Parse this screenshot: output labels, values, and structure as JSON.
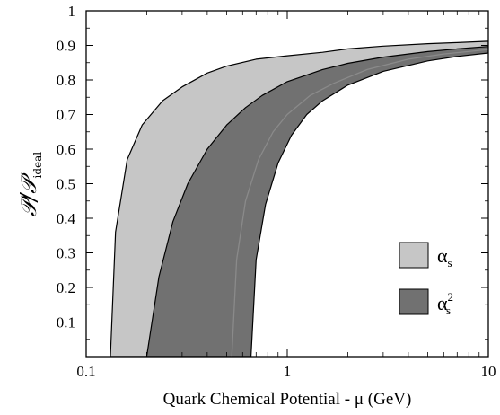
{
  "chart_data": {
    "type": "area",
    "title": "",
    "xlabel": "Quark Chemical Potential - μ (GeV)",
    "ylabel": {
      "main": "𝒫/𝒫",
      "sub": "ideal"
    },
    "xscale": "log",
    "xlim": [
      0.1,
      10
    ],
    "ylim": [
      0,
      1
    ],
    "x_ticks": [
      {
        "value": 0.1,
        "label": "0.1"
      },
      {
        "value": 1,
        "label": "1"
      },
      {
        "value": 10,
        "label": "10"
      }
    ],
    "y_ticks": [
      {
        "value": 0.1,
        "label": "0.1"
      },
      {
        "value": 0.2,
        "label": "0.2"
      },
      {
        "value": 0.3,
        "label": "0.3"
      },
      {
        "value": 0.4,
        "label": "0.4"
      },
      {
        "value": 0.5,
        "label": "0.5"
      },
      {
        "value": 0.6,
        "label": "0.6"
      },
      {
        "value": 0.7,
        "label": "0.7"
      },
      {
        "value": 0.8,
        "label": "0.8"
      },
      {
        "value": 0.9,
        "label": "0.9"
      },
      {
        "value": 1,
        "label": "1"
      }
    ],
    "grid": false,
    "legend_position": "bottom-right",
    "series": [
      {
        "name": "αs",
        "legend": {
          "symbol": "α",
          "sub": "s",
          "sup": ""
        },
        "color": "#c6c6c6",
        "lower_bound": {
          "x": [
            0.22,
            0.26,
            0.32,
            0.4,
            0.5,
            0.62,
            0.75,
            1.0,
            1.5,
            2.0,
            3.0,
            5.0,
            7.0,
            10.0
          ],
          "y": [
            0.0,
            0.23,
            0.4,
            0.52,
            0.61,
            0.68,
            0.72,
            0.77,
            0.81,
            0.83,
            0.855,
            0.875,
            0.885,
            0.893
          ]
        },
        "upper_bound": {
          "x": [
            0.132,
            0.14,
            0.16,
            0.19,
            0.24,
            0.3,
            0.4,
            0.5,
            0.7,
            1.0,
            1.5,
            2.0,
            3.0,
            5.0,
            7.0,
            10.0
          ],
          "y": [
            0.0,
            0.36,
            0.57,
            0.67,
            0.74,
            0.78,
            0.82,
            0.84,
            0.86,
            0.87,
            0.88,
            0.89,
            0.898,
            0.905,
            0.908,
            0.912
          ]
        }
      },
      {
        "name": "αs²",
        "legend": {
          "symbol": "α",
          "sub": "s",
          "sup": "2"
        },
        "color": "#717171",
        "lower_bound": {
          "x": [
            0.66,
            0.7,
            0.78,
            0.9,
            1.05,
            1.25,
            1.5,
            2.0,
            3.0,
            5.0,
            7.0,
            10.0
          ],
          "y": [
            0.0,
            0.28,
            0.44,
            0.56,
            0.64,
            0.7,
            0.74,
            0.785,
            0.825,
            0.855,
            0.868,
            0.878
          ]
        },
        "upper_bound": {
          "x": [
            0.2,
            0.23,
            0.27,
            0.32,
            0.4,
            0.5,
            0.62,
            0.75,
            1.0,
            1.5,
            2.0,
            3.0,
            5.0,
            7.0,
            10.0
          ],
          "y": [
            0.0,
            0.23,
            0.39,
            0.5,
            0.6,
            0.67,
            0.72,
            0.755,
            0.795,
            0.83,
            0.848,
            0.866,
            0.882,
            0.89,
            0.897
          ]
        },
        "center_line": {
          "x": [
            0.53,
            0.56,
            0.62,
            0.72,
            0.85,
            1.0,
            1.3,
            1.7,
            2.5,
            4.0,
            6.0,
            10.0
          ],
          "y": [
            0.0,
            0.28,
            0.45,
            0.57,
            0.65,
            0.7,
            0.755,
            0.79,
            0.83,
            0.86,
            0.875,
            0.888
          ]
        }
      }
    ]
  },
  "colors": {
    "axis": "#000000",
    "center_line": "#8a8a8a",
    "background": "#ffffff"
  }
}
